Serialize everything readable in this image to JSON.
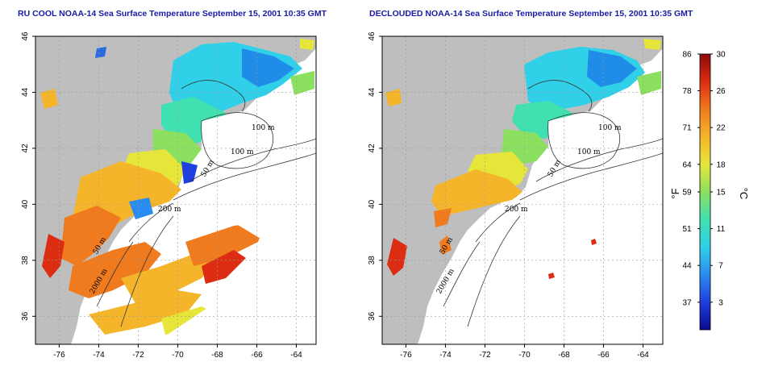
{
  "panels": [
    {
      "id": "left",
      "title": "RU COOL NOAA-14 Sea Surface Temperature September 15, 2001 10:35 GMT",
      "contour_labels": [
        "100 m",
        "100 m",
        "50 m",
        "200 m",
        "50 m",
        "2000 m"
      ]
    },
    {
      "id": "right",
      "title": "DECLOUDED NOAA-14 Sea Surface Temperature September 15, 2001 10:35 GMT",
      "contour_labels": [
        "100 m",
        "100 m",
        "50 m",
        "200 m",
        "50 m",
        "2000 m"
      ]
    }
  ],
  "axes": {
    "lon_ticks": [
      "-76",
      "-74",
      "-72",
      "-70",
      "-68",
      "-66",
      "-64"
    ],
    "lat_ticks": [
      "36",
      "38",
      "40",
      "42",
      "44",
      "46"
    ],
    "lon_range": [
      -77.2,
      -63.0
    ],
    "lat_range": [
      35.0,
      46.0
    ],
    "grid": true
  },
  "colorbar": {
    "fahrenheit_ticks": [
      "86",
      "78",
      "71",
      "64",
      "59",
      "51",
      "44",
      "37"
    ],
    "celsius_ticks": [
      "30",
      "26",
      "22",
      "18",
      "15",
      "11",
      "7",
      "3"
    ],
    "fahrenheit_unit": "°F",
    "celsius_unit": "°C",
    "range_c": [
      0,
      30
    ],
    "colors": [
      "#0a0a8c",
      "#1f3fe0",
      "#2a8cf0",
      "#2fd0e8",
      "#40e0b0",
      "#8ce060",
      "#e6e63a",
      "#f5b52a",
      "#f07a1e",
      "#dc2d12",
      "#8c0a0a"
    ]
  },
  "colors": {
    "land": "#bebebe",
    "ocean_cloud": "#ffffff",
    "title": "#1a1aa6"
  }
}
